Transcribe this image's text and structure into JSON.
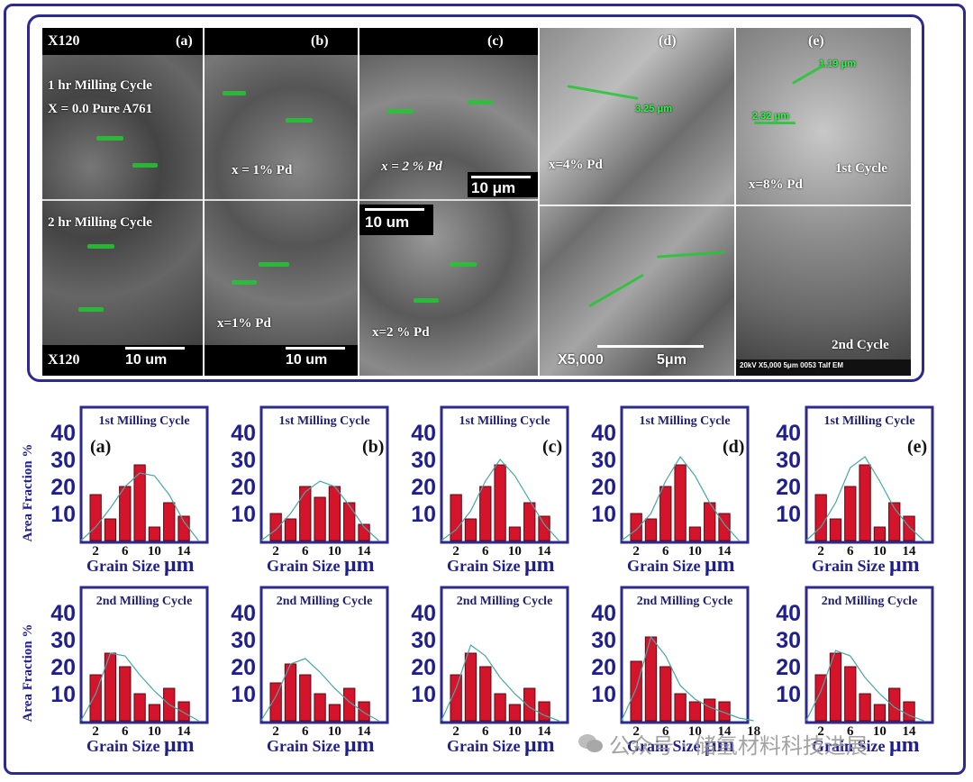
{
  "figure": {
    "sem": {
      "top_label": "X120",
      "bottom_label": "X120",
      "scale_10um": "10  um",
      "scale_10um_c": "10  μm",
      "scale_x5000": "X5,000",
      "scale_5um": "5μm",
      "panels": [
        {
          "letter": "(a)",
          "cycle1_text": "1 hr Milling Cycle",
          "comp_text": "X = 0.0 Pure A761",
          "cycle2_text": "2 hr Milling Cycle"
        },
        {
          "letter": "(b)",
          "comp_text_top": "x = 1% Pd",
          "comp_text_bottom": "x=1% Pd"
        },
        {
          "letter": "(c)",
          "comp_text_top": "x = 2 % Pd",
          "comp_text_bottom": "x=2 % Pd"
        },
        {
          "letter": "(d)",
          "comp_text_top": "x=4% Pd",
          "measure": "3.25 μm"
        },
        {
          "letter": "(e)",
          "comp_text_top": "x=8% Pd",
          "measure": "1.19 μm",
          "measure2": "2.32 μm",
          "cycle1": "1st Cycle",
          "cycle2": "2nd Cycle",
          "footer": "20kV    X5,000     5μm     0053    Talf EM"
        }
      ]
    }
  },
  "colors": {
    "frame": "#2c2a8c",
    "bar": "#d4142a",
    "curve": "#4aa6a6",
    "axis_text": "#1f1f8f"
  },
  "chart_data": [
    {
      "type": "bar",
      "title": "1st Milling Cycle",
      "letter": "(a)",
      "x": [
        2,
        4,
        6,
        8,
        10,
        12,
        14
      ],
      "values": [
        17,
        8,
        20,
        28,
        5,
        14,
        9
      ],
      "curve": [
        5,
        12,
        20,
        25,
        24,
        17,
        7
      ],
      "yticks": [
        10,
        20,
        30,
        40
      ],
      "xticks": [
        "2",
        "6",
        "10",
        "14"
      ],
      "xlabel": "Grain Size",
      "xunit": "μm",
      "ylabel": "Area Fraction %",
      "ylim": [
        0,
        45
      ]
    },
    {
      "type": "bar",
      "title": "1st Milling Cycle",
      "letter": "(b)",
      "x": [
        2,
        4,
        6,
        8,
        10,
        12,
        14
      ],
      "values": [
        10,
        8,
        20,
        16,
        20,
        14,
        6
      ],
      "curve": [
        4,
        10,
        18,
        22,
        20,
        13,
        5
      ],
      "yticks": [
        10,
        20,
        30,
        40
      ],
      "xticks": [
        "2",
        "6",
        "10",
        "14"
      ],
      "xlabel": "Grain Size",
      "xunit": "μm",
      "ylim": [
        0,
        45
      ]
    },
    {
      "type": "bar",
      "title": "1st Milling Cycle",
      "letter": "(c)",
      "x": [
        2,
        4,
        6,
        8,
        10,
        12,
        14
      ],
      "values": [
        17,
        8,
        20,
        28,
        5,
        14,
        9
      ],
      "curve": [
        4,
        11,
        22,
        30,
        24,
        15,
        6
      ],
      "yticks": [
        10,
        20,
        30,
        40
      ],
      "xticks": [
        "2",
        "6",
        "10",
        "14"
      ],
      "xlabel": "Grain Size",
      "xunit": "μm",
      "ylim": [
        0,
        45
      ]
    },
    {
      "type": "bar",
      "title": "1st Milling Cycle",
      "letter": "(d)",
      "x": [
        2,
        4,
        6,
        8,
        10,
        12,
        14
      ],
      "values": [
        10,
        8,
        20,
        28,
        5,
        14,
        10
      ],
      "curve": [
        4,
        10,
        22,
        31,
        24,
        14,
        6
      ],
      "yticks": [
        10,
        20,
        30,
        40
      ],
      "xticks": [
        "2",
        "6",
        "10",
        "14"
      ],
      "xlabel": "Grain Size",
      "xunit": "μm",
      "ylim": [
        0,
        45
      ]
    },
    {
      "type": "bar",
      "title": "1st Milling Cycle",
      "letter": "(e)",
      "x": [
        2,
        4,
        6,
        8,
        10,
        12,
        14
      ],
      "values": [
        17,
        8,
        20,
        28,
        5,
        14,
        9
      ],
      "curve": [
        5,
        14,
        27,
        31,
        22,
        12,
        5
      ],
      "yticks": [
        10,
        20,
        30,
        40
      ],
      "xticks": [
        "2",
        "6",
        "10",
        "14"
      ],
      "xlabel": "Grain Size",
      "xunit": "μm",
      "ylim": [
        0,
        45
      ]
    },
    {
      "type": "bar",
      "title": "2nd Milling Cycle",
      "letter": "",
      "x": [
        2,
        4,
        6,
        8,
        10,
        12,
        14
      ],
      "values": [
        17,
        25,
        20,
        10,
        6,
        12,
        7
      ],
      "curve": [
        10,
        25,
        24,
        17,
        11,
        6,
        3
      ],
      "yticks": [
        10,
        20,
        30,
        40
      ],
      "xticks": [
        "2",
        "6",
        "10",
        "14"
      ],
      "xlabel": "Grain Size",
      "xunit": "μm",
      "ylabel": "Area Fraction %",
      "ylim": [
        0,
        45
      ]
    },
    {
      "type": "bar",
      "title": "2nd Milling Cycle",
      "letter": "",
      "x": [
        2,
        4,
        6,
        8,
        10,
        12,
        14
      ],
      "values": [
        14,
        21,
        17,
        10,
        6,
        12,
        7
      ],
      "curve": [
        9,
        21,
        23,
        18,
        12,
        7,
        3
      ],
      "yticks": [
        10,
        20,
        30,
        40
      ],
      "xticks": [
        "2",
        "6",
        "10",
        "14"
      ],
      "xlabel": "Grain Size",
      "xunit": "μm",
      "ylim": [
        0,
        45
      ]
    },
    {
      "type": "bar",
      "title": "2nd Milling Cycle",
      "letter": "",
      "x": [
        2,
        4,
        6,
        8,
        10,
        12,
        14
      ],
      "values": [
        17,
        25,
        20,
        10,
        6,
        12,
        7
      ],
      "curve": [
        12,
        28,
        24,
        16,
        10,
        5,
        2
      ],
      "yticks": [
        10,
        20,
        30,
        40
      ],
      "xticks": [
        "2",
        "6",
        "10",
        "14"
      ],
      "xlabel": "Grain Size",
      "xunit": "μm",
      "ylim": [
        0,
        45
      ]
    },
    {
      "type": "bar",
      "title": "2nd Milling Cycle",
      "letter": "",
      "x": [
        2,
        4,
        6,
        8,
        10,
        12,
        14,
        16
      ],
      "values": [
        22,
        31,
        20,
        10,
        7,
        8,
        7,
        0
      ],
      "curve": [
        12,
        31,
        24,
        13,
        8,
        5,
        3,
        1
      ],
      "yticks": [
        10,
        20,
        30,
        40
      ],
      "xticks": [
        "2",
        "6",
        "10",
        "14",
        "18"
      ],
      "xlabel": "Grain Size",
      "xunit": "μm",
      "ylim": [
        0,
        45
      ]
    },
    {
      "type": "bar",
      "title": "2nd Milling Cycle",
      "letter": "",
      "x": [
        2,
        4,
        6,
        8,
        10,
        12,
        14
      ],
      "values": [
        17,
        25,
        20,
        10,
        6,
        12,
        7
      ],
      "curve": [
        11,
        26,
        24,
        16,
        10,
        5,
        2
      ],
      "yticks": [
        10,
        20,
        30,
        40
      ],
      "xticks": [
        "2",
        "6",
        "10",
        "14"
      ],
      "xlabel": "Grain Size",
      "xunit": "μm",
      "ylim": [
        0,
        45
      ]
    }
  ],
  "watermark": {
    "text": "公众号 · 储氢材料科技进展",
    "icon": "wechat-icon"
  }
}
